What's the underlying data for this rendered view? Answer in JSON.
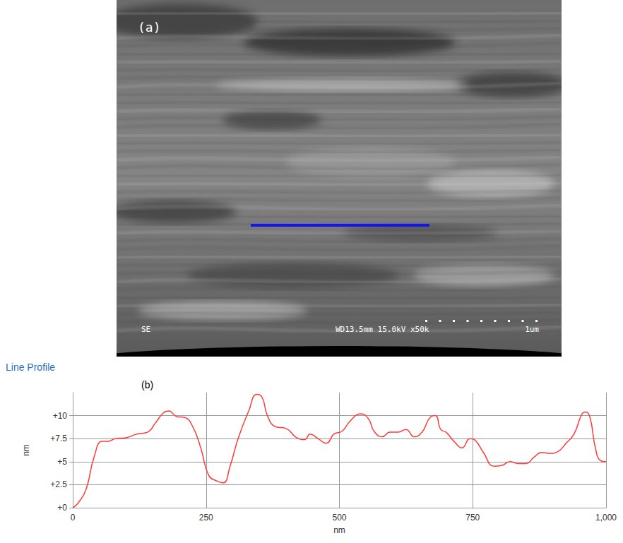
{
  "image_panel": {
    "label": "(a)",
    "detector": "SE",
    "conditions": "WD13.5mm 15.0kV x50k",
    "scale_bar": "1um"
  },
  "chart_data": {
    "type": "line",
    "title": "Line Profile",
    "annotations": [
      "(b)"
    ],
    "xlabel": "nm",
    "ylabel": "nm",
    "color": "#ff3b3b",
    "grid": true,
    "xlim": [
      0,
      1000
    ],
    "xticks": [
      0,
      250,
      500,
      750,
      1000
    ],
    "ylim": [
      0,
      12.5
    ],
    "yticks": [
      {
        "value": 0,
        "label": "+0"
      },
      {
        "value": 2.5,
        "label": "+2.5"
      },
      {
        "value": 5,
        "label": "+5"
      },
      {
        "value": 7.5,
        "label": "+7.5"
      },
      {
        "value": 10,
        "label": "+10"
      }
    ],
    "x": [
      0,
      10,
      25,
      40,
      55,
      65,
      80,
      100,
      120,
      140,
      155,
      170,
      180,
      195,
      210,
      225,
      240,
      255,
      270,
      282,
      295,
      310,
      330,
      345,
      355,
      365,
      380,
      400,
      420,
      435,
      445,
      460,
      475,
      490,
      505,
      520,
      540,
      555,
      565,
      580,
      595,
      610,
      625,
      640,
      655,
      670,
      680,
      690,
      700,
      715,
      730,
      745,
      755,
      770,
      790,
      805,
      820,
      835,
      850,
      865,
      880,
      895,
      910,
      925,
      940,
      955,
      962,
      970,
      980,
      990,
      1000
    ],
    "values": [
      0.0,
      0.5,
      2.0,
      5.5,
      7.2,
      7.2,
      7.5,
      7.6,
      8.0,
      8.2,
      9.2,
      10.3,
      10.5,
      9.9,
      9.8,
      8.8,
      6.5,
      3.5,
      2.9,
      2.7,
      4.5,
      7.5,
      10.5,
      12.3,
      12.0,
      10.0,
      8.8,
      8.6,
      7.6,
      7.4,
      8.0,
      7.5,
      7.0,
      8.0,
      8.3,
      9.4,
      10.2,
      9.6,
      8.3,
      7.7,
      8.2,
      8.2,
      8.5,
      7.7,
      8.2,
      9.8,
      10.0,
      8.5,
      8.2,
      7.2,
      6.5,
      7.5,
      7.3,
      6.0,
      4.5,
      4.6,
      5.0,
      4.8,
      4.8,
      5.5,
      6.0,
      5.9,
      6.1,
      7.0,
      8.0,
      10.2,
      10.4,
      9.8,
      6.5,
      5.1,
      5.0
    ]
  }
}
